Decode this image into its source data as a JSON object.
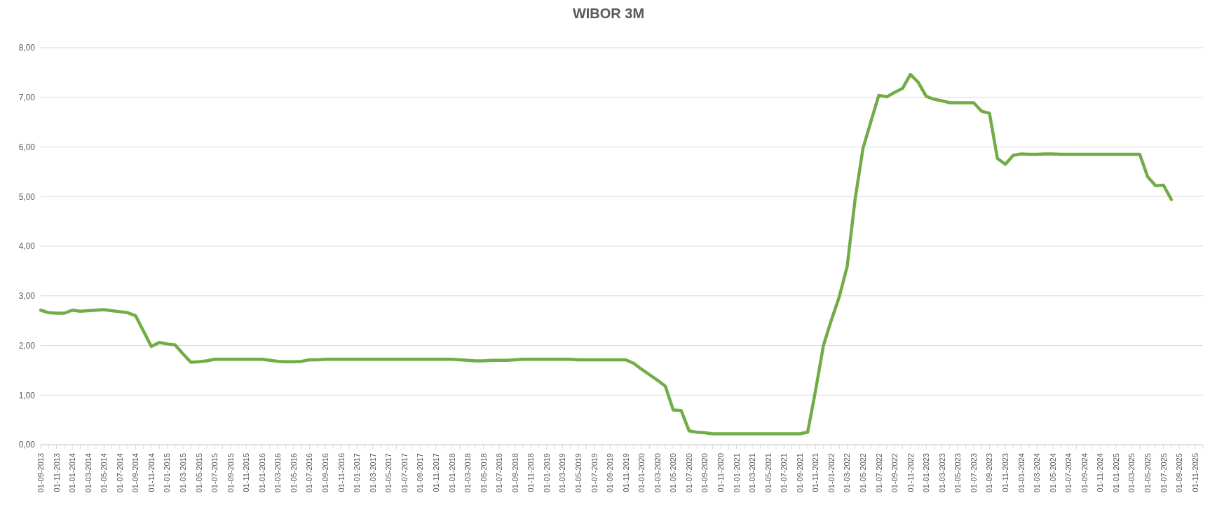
{
  "chart_data": {
    "type": "line",
    "title": "WIBOR 3M",
    "categories": [
      "01-09-2013",
      null,
      "01-11-2013",
      null,
      "01-01-2014",
      null,
      "01-03-2014",
      null,
      "01-05-2014",
      null,
      "01-07-2014",
      null,
      "01-09-2014",
      null,
      "01-11-2014",
      null,
      "01-01-2015",
      null,
      "01-03-2015",
      null,
      "01-05-2015",
      null,
      "01-07-2015",
      null,
      "01-09-2015",
      null,
      "01-11-2015",
      null,
      "01-01-2016",
      null,
      "01-03-2016",
      null,
      "01-05-2016",
      null,
      "01-07-2016",
      null,
      "01-09-2016",
      null,
      "01-11-2016",
      null,
      "01-01-2017",
      null,
      "01-03-2017",
      null,
      "01-05-2017",
      null,
      "01-07-2017",
      null,
      "01-09-2017",
      null,
      "01-11-2017",
      null,
      "01-01-2018",
      null,
      "01-03-2018",
      null,
      "01-05-2018",
      null,
      "01-07-2018",
      null,
      "01-09-2018",
      null,
      "01-11-2018",
      null,
      "01-01-2019",
      null,
      "01-03-2019",
      null,
      "01-05-2019",
      null,
      "01-07-2019",
      null,
      "01-09-2019",
      null,
      "01-11-2019",
      null,
      "01-01-2020",
      null,
      "01-03-2020",
      null,
      "01-05-2020",
      null,
      "01-07-2020",
      null,
      "01-09-2020",
      null,
      "01-11-2020",
      null,
      "01-01-2021",
      null,
      "01-03-2021",
      null,
      "01-05-2021",
      null,
      "01-07-2021",
      null,
      "01-09-2021",
      null,
      "01-11-2021",
      null,
      "01-01-2022",
      null,
      "01-03-2022",
      null,
      "01-05-2022",
      null,
      "01-07-2022",
      null,
      "01-09-2022",
      null,
      "01-11-2022",
      null,
      "01-01-2023",
      null,
      "01-03-2023",
      null,
      "01-05-2023",
      null,
      "01-07-2023",
      null,
      "01-09-2023",
      null,
      "01-11-2023",
      null,
      "01-01-2024",
      null,
      "01-03-2024",
      null,
      "01-05-2024",
      null,
      "01-07-2024",
      null,
      "01-09-2024",
      null,
      "01-11-2024",
      null,
      "01-01-2025",
      null,
      "01-03-2025",
      null,
      "01-05-2025",
      null,
      "01-07-2025",
      null,
      "01-09-2025",
      null,
      "01-11-2025",
      null
    ],
    "series": [
      {
        "color": "#70ad47",
        "values": [
          2.71,
          2.66,
          2.65,
          2.65,
          2.71,
          2.69,
          2.7,
          2.71,
          2.72,
          2.7,
          2.68,
          2.66,
          2.6,
          2.29,
          1.98,
          2.06,
          2.03,
          2.01,
          1.83,
          1.66,
          1.67,
          1.69,
          1.72,
          1.72,
          1.72,
          1.72,
          1.72,
          1.72,
          1.72,
          1.7,
          1.68,
          1.67,
          1.67,
          1.68,
          1.71,
          1.71,
          1.72,
          1.72,
          1.72,
          1.72,
          1.72,
          1.72,
          1.72,
          1.72,
          1.72,
          1.72,
          1.72,
          1.72,
          1.72,
          1.72,
          1.72,
          1.72,
          1.72,
          1.71,
          1.7,
          1.69,
          1.69,
          1.7,
          1.7,
          1.7,
          1.71,
          1.72,
          1.72,
          1.72,
          1.72,
          1.72,
          1.72,
          1.72,
          1.71,
          1.71,
          1.71,
          1.71,
          1.71,
          1.71,
          1.71,
          1.64,
          1.52,
          1.41,
          1.3,
          1.18,
          0.7,
          0.69,
          0.28,
          0.25,
          0.24,
          0.22,
          0.22,
          0.22,
          0.22,
          0.22,
          0.22,
          0.22,
          0.22,
          0.22,
          0.22,
          0.22,
          0.22,
          0.25,
          1.09,
          2.0,
          2.51,
          2.98,
          3.59,
          4.94,
          5.97,
          6.51,
          7.04,
          7.01,
          7.1,
          7.18,
          7.46,
          7.3,
          7.02,
          6.96,
          6.93,
          6.89,
          6.89,
          6.89,
          6.89,
          6.72,
          6.68,
          5.77,
          5.65,
          5.83,
          5.86,
          5.85,
          5.85,
          5.86,
          5.86,
          5.85,
          5.85,
          5.85,
          5.85,
          5.85,
          5.85,
          5.85,
          5.85,
          5.85,
          5.85,
          5.85,
          5.4,
          5.22,
          5.23,
          4.94,
          null,
          null,
          null,
          null
        ]
      }
    ],
    "ylim": [
      0,
      8
    ],
    "yticks": [
      {
        "value": 0,
        "label": "0,00"
      },
      {
        "value": 1,
        "label": "1,00"
      },
      {
        "value": 2,
        "label": "2,00"
      },
      {
        "value": 3,
        "label": "3,00"
      },
      {
        "value": 4,
        "label": "4,00"
      },
      {
        "value": 5,
        "label": "5,00"
      },
      {
        "value": 6,
        "label": "6,00"
      },
      {
        "value": 7,
        "label": "7,00"
      },
      {
        "value": 8,
        "label": "8,00"
      }
    ],
    "grid": "y",
    "legend": false,
    "marker": "none",
    "line_style": "solid"
  }
}
